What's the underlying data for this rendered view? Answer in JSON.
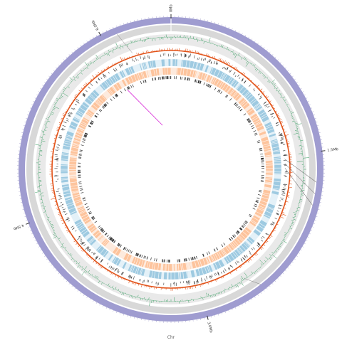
{
  "genome": {
    "size_mbp": 6.5,
    "chromosome_label": "Chr",
    "major_ticks": [
      {
        "mbp": 0,
        "label": "0Mb"
      },
      {
        "mbp": 1.5,
        "label": "1.5Mb"
      },
      {
        "mbp": 3.0,
        "label": "3.0Mb"
      },
      {
        "mbp": 4.5,
        "label": "4.5Mb"
      },
      {
        "mbp": 6.0,
        "label": "6.0Mb"
      }
    ]
  },
  "colors": {
    "ideogram": "#9f9cd0",
    "grey_band": "#d8d8d8",
    "gc_skew": "#2f9a5b",
    "gc_content": "#e2541b",
    "snp_marks": "#3a3a3a",
    "forward_cds": "#9ecae1",
    "reverse_cds": "#fdc49d",
    "rna_marks": "#2b2b2b",
    "highlight": "#d61fd6"
  }
}
